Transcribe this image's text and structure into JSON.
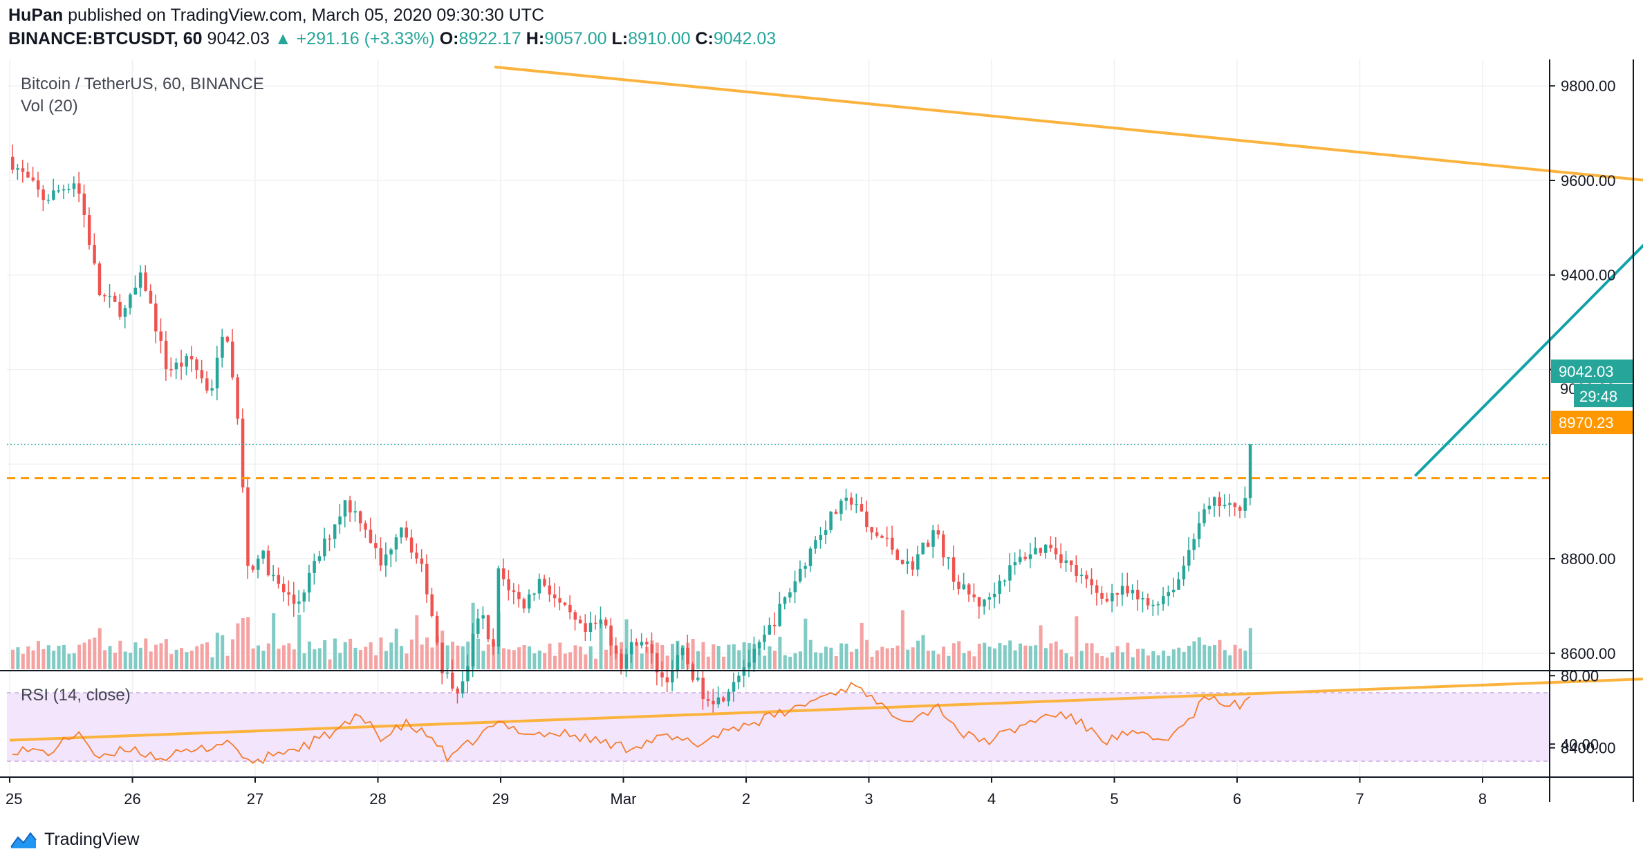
{
  "header": {
    "author": "HuPan",
    "published_text": "published on TradingView.com, March 05, 2020 09:30:30 UTC",
    "symbol": "BINANCE:BTCUSDT, 60",
    "last_price": "9042.03",
    "change_arrow": "▲",
    "change": "+291.16 (+3.33%)",
    "open_label": "O:",
    "open": "8922.17",
    "high_label": "H:",
    "high": "9057.00",
    "low_label": "L:",
    "low": "8910.00",
    "close_label": "C:",
    "close": "9042.03"
  },
  "legend": {
    "title": "Bitcoin / TetherUS, 60, BINANCE",
    "volume": "Vol (20)",
    "rsi": "RSI (14, close)"
  },
  "footer": {
    "brand": "TradingView",
    "logo_icon": "tradingview-logo-icon"
  },
  "colors": {
    "up": "#26a69a",
    "down": "#ef5350",
    "vol_up": "#80cbc4",
    "vol_down": "#f4a3a2",
    "trendline": "#fbb33e",
    "resistance": "#ff9800",
    "arrow": "#12a2a8",
    "rsi_line": "#f57c2a",
    "rsi_band": "#f3e5fc",
    "grid": "#eef0f3",
    "axis": "#131722"
  },
  "chart_data": {
    "type": "candlestick",
    "ylim": [
      8300,
      9850
    ],
    "y_ticks": [
      "9800.00",
      "9600.00",
      "9400.00",
      "9200.00",
      "8800.00",
      "8600.00",
      "8400.00"
    ],
    "x_ticks": [
      "25",
      "26",
      "27",
      "28",
      "29",
      "Mar",
      "2",
      "3",
      "4",
      "5",
      "6",
      "7",
      "8"
    ],
    "price_labels": {
      "last": "9042.03",
      "countdown": "29:48",
      "resistance": "8970.23",
      "hidden_tick": "9000.00"
    },
    "resistance_level": 8970.23,
    "upper_trendline": {
      "from": {
        "day": 3.95,
        "price": 9840
      },
      "to": {
        "day": 16.35,
        "price": 9523
      }
    },
    "lower_trendline": {
      "from": {
        "day": 0,
        "price": 8416
      },
      "to": {
        "day": 16.35,
        "price": 8575
      }
    },
    "projection_arrow": {
      "from": {
        "day": 11.45,
        "price": 8975
      },
      "to": {
        "day": 13.7,
        "price": 9565
      }
    },
    "path_anchors": [
      {
        "day": 0.0,
        "price": 9650
      },
      {
        "day": 0.3,
        "price": 9560
      },
      {
        "day": 0.55,
        "price": 9600
      },
      {
        "day": 0.6,
        "price": 9560
      },
      {
        "day": 0.75,
        "price": 9360
      },
      {
        "day": 0.95,
        "price": 9320
      },
      {
        "day": 1.1,
        "price": 9400
      },
      {
        "day": 1.3,
        "price": 9200
      },
      {
        "day": 1.5,
        "price": 9220
      },
      {
        "day": 1.65,
        "price": 9150
      },
      {
        "day": 1.78,
        "price": 9295
      },
      {
        "day": 1.88,
        "price": 9080
      },
      {
        "day": 1.97,
        "price": 8750
      },
      {
        "day": 2.05,
        "price": 8820
      },
      {
        "day": 2.18,
        "price": 8750
      },
      {
        "day": 2.35,
        "price": 8700
      },
      {
        "day": 2.6,
        "price": 8840
      },
      {
        "day": 2.75,
        "price": 8920
      },
      {
        "day": 2.9,
        "price": 8880
      },
      {
        "day": 3.05,
        "price": 8780
      },
      {
        "day": 3.2,
        "price": 8880
      },
      {
        "day": 3.4,
        "price": 8760
      },
      {
        "day": 3.55,
        "price": 8560
      },
      {
        "day": 3.7,
        "price": 8520
      },
      {
        "day": 3.85,
        "price": 8700
      },
      {
        "day": 3.95,
        "price": 8580
      },
      {
        "day": 4.0,
        "price": 8770
      },
      {
        "day": 4.2,
        "price": 8700
      },
      {
        "day": 4.35,
        "price": 8760
      },
      {
        "day": 4.5,
        "price": 8700
      },
      {
        "day": 4.7,
        "price": 8640
      },
      {
        "day": 4.85,
        "price": 8670
      },
      {
        "day": 5.0,
        "price": 8580
      },
      {
        "day": 5.15,
        "price": 8640
      },
      {
        "day": 5.35,
        "price": 8540
      },
      {
        "day": 5.5,
        "price": 8600
      },
      {
        "day": 5.65,
        "price": 8520
      },
      {
        "day": 5.8,
        "price": 8500
      },
      {
        "day": 5.95,
        "price": 8560
      },
      {
        "day": 6.1,
        "price": 8600
      },
      {
        "day": 6.35,
        "price": 8720
      },
      {
        "day": 6.6,
        "price": 8850
      },
      {
        "day": 6.75,
        "price": 8900
      },
      {
        "day": 6.9,
        "price": 8930
      },
      {
        "day": 7.0,
        "price": 8860
      },
      {
        "day": 7.15,
        "price": 8840
      },
      {
        "day": 7.35,
        "price": 8780
      },
      {
        "day": 7.55,
        "price": 8860
      },
      {
        "day": 7.75,
        "price": 8740
      },
      {
        "day": 7.95,
        "price": 8700
      },
      {
        "day": 8.1,
        "price": 8760
      },
      {
        "day": 8.3,
        "price": 8810
      },
      {
        "day": 8.5,
        "price": 8830
      },
      {
        "day": 8.7,
        "price": 8770
      },
      {
        "day": 8.9,
        "price": 8720
      },
      {
        "day": 9.1,
        "price": 8730
      },
      {
        "day": 9.3,
        "price": 8700
      },
      {
        "day": 9.45,
        "price": 8730
      },
      {
        "day": 9.55,
        "price": 8760
      },
      {
        "day": 9.7,
        "price": 8880
      },
      {
        "day": 9.85,
        "price": 8920
      },
      {
        "day": 10.0,
        "price": 8900
      },
      {
        "day": 10.08,
        "price": 8930
      },
      {
        "day": 10.12,
        "price": 9042
      }
    ],
    "volume_scale_max": 100,
    "rsi": {
      "ylim": [
        25,
        82
      ],
      "band": [
        30,
        70
      ],
      "ticks": [
        "80.00",
        "40.00"
      ],
      "anchors": [
        {
          "day": 0.0,
          "price": 37
        },
        {
          "day": 0.3,
          "price": 35
        },
        {
          "day": 0.55,
          "price": 48
        },
        {
          "day": 0.7,
          "price": 30
        },
        {
          "day": 0.95,
          "price": 38
        },
        {
          "day": 1.2,
          "price": 32
        },
        {
          "day": 1.5,
          "price": 36
        },
        {
          "day": 1.75,
          "price": 42
        },
        {
          "day": 1.98,
          "price": 27
        },
        {
          "day": 2.1,
          "price": 34
        },
        {
          "day": 2.35,
          "price": 38
        },
        {
          "day": 2.65,
          "price": 48
        },
        {
          "day": 2.8,
          "price": 55
        },
        {
          "day": 2.95,
          "price": 52
        },
        {
          "day": 3.0,
          "price": 42
        },
        {
          "day": 3.2,
          "price": 52
        },
        {
          "day": 3.45,
          "price": 42
        },
        {
          "day": 3.55,
          "price": 30
        },
        {
          "day": 3.75,
          "price": 42
        },
        {
          "day": 3.95,
          "price": 52
        },
        {
          "day": 4.25,
          "price": 46
        },
        {
          "day": 4.5,
          "price": 46
        },
        {
          "day": 4.7,
          "price": 43
        },
        {
          "day": 5.0,
          "price": 38
        },
        {
          "day": 5.3,
          "price": 44
        },
        {
          "day": 5.6,
          "price": 40
        },
        {
          "day": 5.8,
          "price": 48
        },
        {
          "day": 6.1,
          "price": 54
        },
        {
          "day": 6.35,
          "price": 60
        },
        {
          "day": 6.6,
          "price": 68
        },
        {
          "day": 6.8,
          "price": 73
        },
        {
          "day": 6.9,
          "price": 76
        },
        {
          "day": 7.05,
          "price": 62
        },
        {
          "day": 7.3,
          "price": 55
        },
        {
          "day": 7.55,
          "price": 62
        },
        {
          "day": 7.75,
          "price": 45
        },
        {
          "day": 7.95,
          "price": 42
        },
        {
          "day": 8.15,
          "price": 48
        },
        {
          "day": 8.35,
          "price": 55
        },
        {
          "day": 8.55,
          "price": 58
        },
        {
          "day": 8.75,
          "price": 50
        },
        {
          "day": 8.9,
          "price": 42
        },
        {
          "day": 9.1,
          "price": 46
        },
        {
          "day": 9.35,
          "price": 42
        },
        {
          "day": 9.55,
          "price": 50
        },
        {
          "day": 9.7,
          "price": 66
        },
        {
          "day": 9.9,
          "price": 64
        },
        {
          "day": 10.0,
          "price": 62
        },
        {
          "day": 10.12,
          "price": 72
        }
      ]
    }
  }
}
